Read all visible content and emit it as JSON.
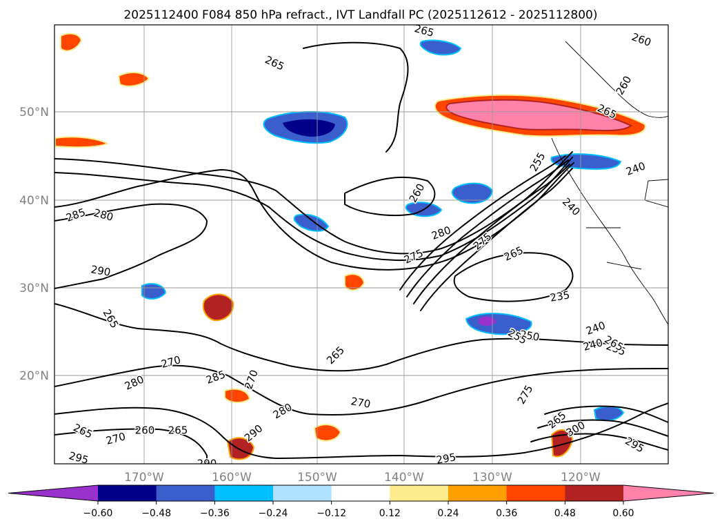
{
  "title": "2025112400 F084 850 hPa refract., IVT Landfall PC (2025112612 - 2025112800)",
  "map": {
    "lat_labels": [
      "50°N",
      "40°N",
      "30°N",
      "20°N"
    ],
    "lon_labels": [
      "170°W",
      "160°W",
      "150°W",
      "140°W",
      "130°W",
      "120°W"
    ],
    "contour_labels": [
      "265",
      "260",
      "265",
      "260",
      "265",
      "285",
      "280",
      "290",
      "275",
      "280",
      "275",
      "260",
      "255",
      "265",
      "235",
      "240",
      "240",
      "250",
      "255",
      "240",
      "265",
      "270",
      "280",
      "285",
      "270",
      "265",
      "270",
      "290",
      "280",
      "265",
      "270",
      "260",
      "265",
      "295",
      "290",
      "295",
      "300",
      "265",
      "295",
      "240",
      "275",
      "255",
      "265"
    ]
  },
  "colorbar": {
    "ticks": [
      "−0.60",
      "−0.48",
      "−0.36",
      "−0.24",
      "−0.12",
      "0.12",
      "0.24",
      "0.36",
      "0.48",
      "0.60"
    ],
    "colors": [
      "#9932cc",
      "#00008b",
      "#3a5fcd",
      "#00bfff",
      "#b0e2ff",
      "#ffffff",
      "#fdec8c",
      "#ff9f00",
      "#ff4500",
      "#b22222",
      "#ff82ab"
    ]
  }
}
